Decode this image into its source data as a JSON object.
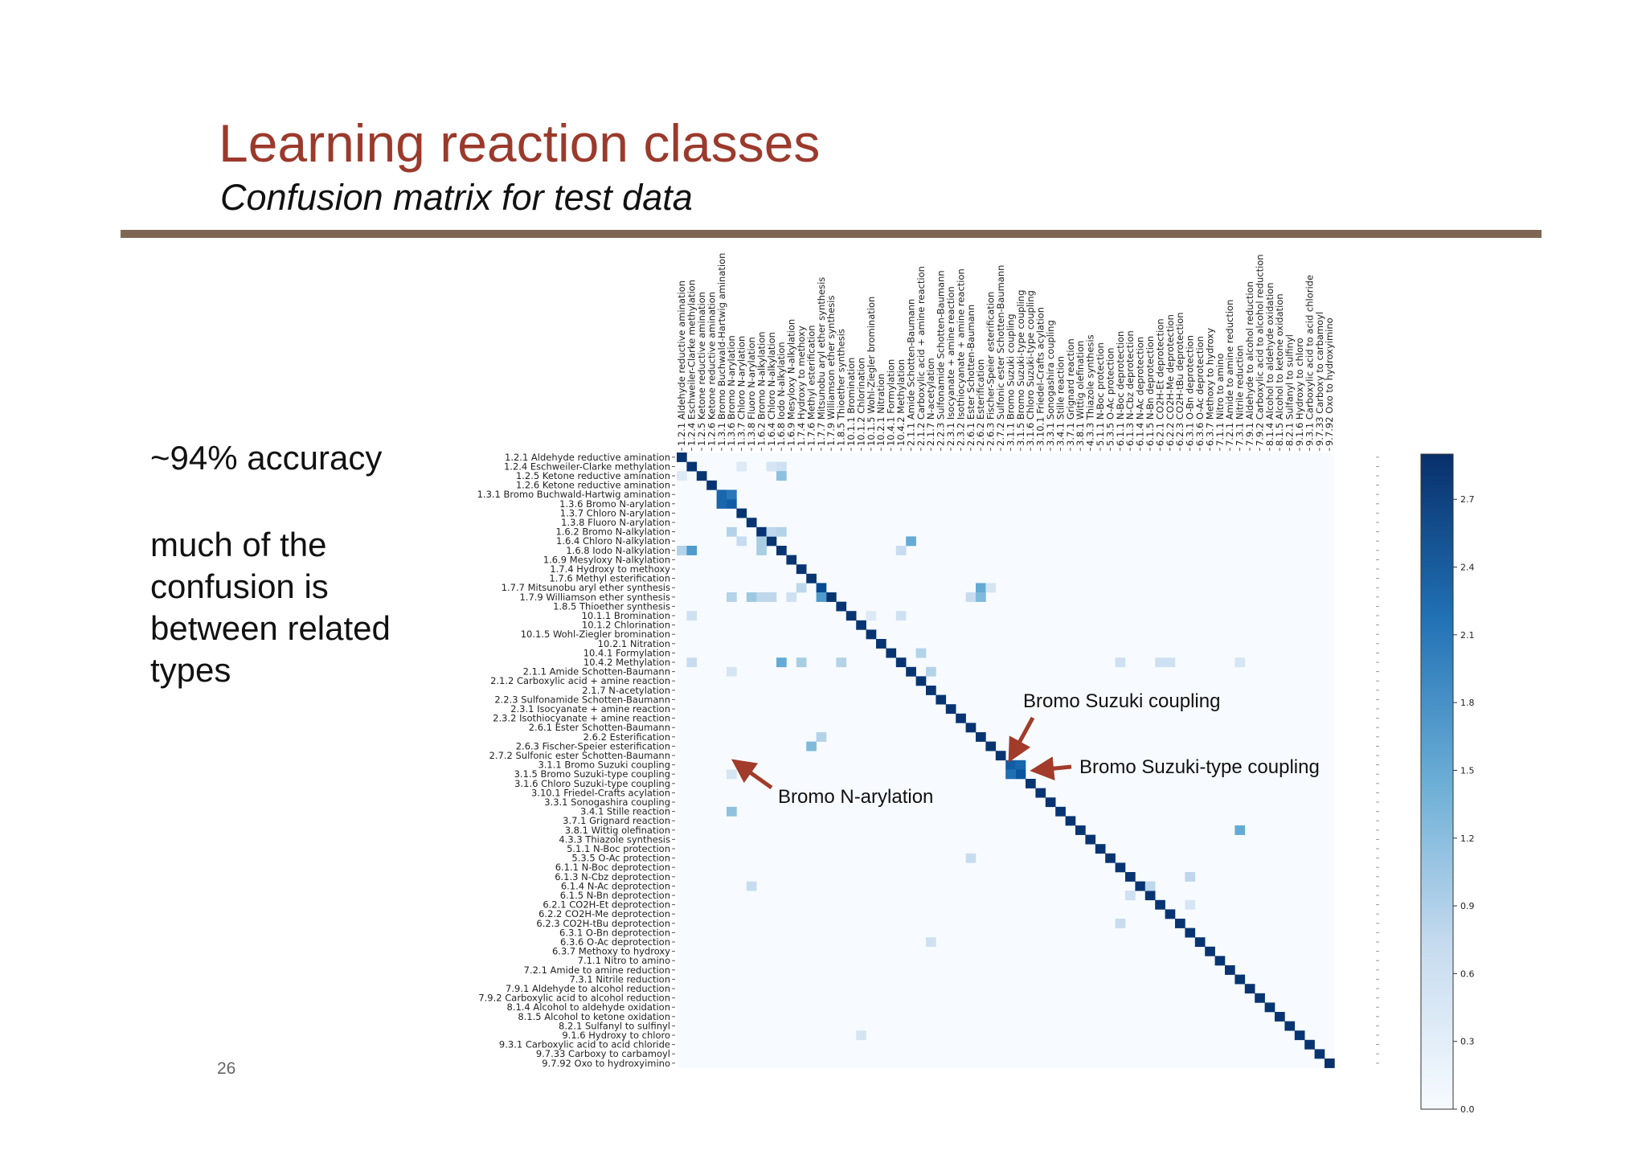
{
  "slide": {
    "title": "Learning reaction classes",
    "subtitle": "Confusion matrix for test data",
    "accuracy_text": "~94% accuracy",
    "note_text": "much of the confusion is between related types",
    "page_number": "26"
  },
  "colors": {
    "title": "#9b3a2c",
    "rule": "#7f6654",
    "arrow": "#a23b2a",
    "cell_min": "#f7fbff",
    "cell_max": "#08306b"
  },
  "chart_data": {
    "type": "heatmap",
    "title": "",
    "xlabel": "",
    "ylabel": "",
    "grid": false,
    "legend": "colorbar-right",
    "colormap": "Blues",
    "labels": [
      "1.2.1 Aldehyde reductive amination",
      "1.2.4 Eschweiler-Clarke methylation",
      "1.2.5 Ketone reductive amination",
      "1.2.6 Ketone reductive amination",
      "1.3.1 Bromo Buchwald-Hartwig amination",
      "1.3.6 Bromo N-arylation",
      "1.3.7 Chloro N-arylation",
      "1.3.8 Fluoro N-arylation",
      "1.6.2 Bromo N-alkylation",
      "1.6.4 Chloro N-alkylation",
      "1.6.8 Iodo N-alkylation",
      "1.6.9 Mesyloxy N-alkylation",
      "1.7.4 Hydroxy to methoxy",
      "1.7.6 Methyl esterification",
      "1.7.7 Mitsunobu aryl ether synthesis",
      "1.7.9 Williamson ether synthesis",
      "1.8.5 Thioether synthesis",
      "10.1.1 Bromination",
      "10.1.2 Chlorination",
      "10.1.5 Wohl-Ziegler bromination",
      "10.2.1 Nitration",
      "10.4.1 Formylation",
      "10.4.2 Methylation",
      "2.1.1 Amide Schotten-Baumann",
      "2.1.2 Carboxylic acid + amine reaction",
      "2.1.7 N-acetylation",
      "2.2.3 Sulfonamide Schotten-Baumann",
      "2.3.1 Isocyanate + amine reaction",
      "2.3.2 Isothiocyanate + amine reaction",
      "2.6.1 Ester Schotten-Baumann",
      "2.6.2 Esterification",
      "2.6.3 Fischer-Speier esterification",
      "2.7.2 Sulfonic ester Schotten-Baumann",
      "3.1.1 Bromo Suzuki coupling",
      "3.1.5 Bromo Suzuki-type coupling",
      "3.1.6 Chloro Suzuki-type coupling",
      "3.10.1 Friedel-Crafts acylation",
      "3.3.1 Sonogashira coupling",
      "3.4.1 Stille reaction",
      "3.7.1 Grignard reaction",
      "3.8.1 Wittig olefination",
      "4.3.3 Thiazole synthesis",
      "5.1.1 N-Boc protection",
      "5.3.5 O-Ac protection",
      "6.1.1 N-Boc deprotection",
      "6.1.3 N-Cbz deprotection",
      "6.1.4 N-Ac deprotection",
      "6.1.5 N-Bn deprotection",
      "6.2.1 CO2H-Et deprotection",
      "6.2.2 CO2H-Me deprotection",
      "6.2.3 CO2H-tBu deprotection",
      "6.3.1 O-Bn deprotection",
      "6.3.6 O-Ac deprotection",
      "6.3.7 Methoxy to hydroxy",
      "7.1.1 Nitro to amino",
      "7.2.1 Amide to amine reduction",
      "7.3.1 Nitrile reduction",
      "7.9.1 Aldehyde to alcohol reduction",
      "7.9.2 Carboxylic acid to alcohol reduction",
      "8.1.4 Alcohol to aldehyde oxidation",
      "8.1.5 Alcohol to ketone oxidation",
      "8.2.1 Sulfanyl to sulfinyl",
      "9.1.6 Hydroxy to chloro",
      "9.3.1 Carboxylic acid to acid chloride",
      "9.7.33 Carboxy to carbamoyl",
      "9.7.92 Oxo to hydroxyimino"
    ],
    "diagonal": [
      2.85,
      2.85,
      2.85,
      2.85,
      2.3,
      2.4,
      2.85,
      2.85,
      2.85,
      2.85,
      2.85,
      2.85,
      2.85,
      2.85,
      2.6,
      2.85,
      2.85,
      2.85,
      2.85,
      2.85,
      2.85,
      2.85,
      2.85,
      2.85,
      2.85,
      2.85,
      2.85,
      2.85,
      2.85,
      2.85,
      2.85,
      2.85,
      2.85,
      2.4,
      2.5,
      2.85,
      2.85,
      2.85,
      2.85,
      2.85,
      2.85,
      2.85,
      2.85,
      2.85,
      2.85,
      2.85,
      2.85,
      2.85,
      2.85,
      2.85,
      2.85,
      2.85,
      2.85,
      2.85,
      2.85,
      2.85,
      2.85,
      2.85,
      2.85,
      2.85,
      2.85,
      2.85,
      2.85,
      2.85,
      2.85,
      2.95
    ],
    "off_diagonal": [
      {
        "row": 1,
        "col": 6,
        "value": 0.4
      },
      {
        "row": 1,
        "col": 9,
        "value": 0.5
      },
      {
        "row": 1,
        "col": 10,
        "value": 0.6
      },
      {
        "row": 2,
        "col": 0,
        "value": 0.4
      },
      {
        "row": 2,
        "col": 10,
        "value": 1.2
      },
      {
        "row": 4,
        "col": 5,
        "value": 2.1
      },
      {
        "row": 5,
        "col": 4,
        "value": 2.3
      },
      {
        "row": 8,
        "col": 5,
        "value": 0.9
      },
      {
        "row": 8,
        "col": 9,
        "value": 0.8
      },
      {
        "row": 8,
        "col": 10,
        "value": 0.9
      },
      {
        "row": 9,
        "col": 6,
        "value": 0.7
      },
      {
        "row": 9,
        "col": 8,
        "value": 1.0
      },
      {
        "row": 9,
        "col": 23,
        "value": 1.5
      },
      {
        "row": 10,
        "col": 0,
        "value": 0.9
      },
      {
        "row": 10,
        "col": 1,
        "value": 1.7
      },
      {
        "row": 10,
        "col": 8,
        "value": 1.0
      },
      {
        "row": 10,
        "col": 22,
        "value": 0.7
      },
      {
        "row": 14,
        "col": 12,
        "value": 0.8
      },
      {
        "row": 14,
        "col": 30,
        "value": 1.5
      },
      {
        "row": 14,
        "col": 31,
        "value": 0.5
      },
      {
        "row": 15,
        "col": 5,
        "value": 0.9
      },
      {
        "row": 15,
        "col": 7,
        "value": 1.1
      },
      {
        "row": 15,
        "col": 8,
        "value": 0.8
      },
      {
        "row": 15,
        "col": 9,
        "value": 0.8
      },
      {
        "row": 15,
        "col": 11,
        "value": 0.6
      },
      {
        "row": 15,
        "col": 14,
        "value": 1.7
      },
      {
        "row": 15,
        "col": 29,
        "value": 0.7
      },
      {
        "row": 15,
        "col": 30,
        "value": 1.3
      },
      {
        "row": 17,
        "col": 1,
        "value": 0.6
      },
      {
        "row": 17,
        "col": 19,
        "value": 0.4
      },
      {
        "row": 17,
        "col": 22,
        "value": 0.6
      },
      {
        "row": 22,
        "col": 1,
        "value": 0.7
      },
      {
        "row": 22,
        "col": 10,
        "value": 1.5
      },
      {
        "row": 22,
        "col": 12,
        "value": 1.0
      },
      {
        "row": 22,
        "col": 16,
        "value": 0.9
      },
      {
        "row": 22,
        "col": 44,
        "value": 0.6
      },
      {
        "row": 22,
        "col": 48,
        "value": 0.6
      },
      {
        "row": 22,
        "col": 49,
        "value": 0.6
      },
      {
        "row": 22,
        "col": 56,
        "value": 0.5
      },
      {
        "row": 23,
        "col": 5,
        "value": 0.5
      },
      {
        "row": 23,
        "col": 25,
        "value": 0.9
      },
      {
        "row": 21,
        "col": 24,
        "value": 0.9
      },
      {
        "row": 30,
        "col": 14,
        "value": 0.9
      },
      {
        "row": 31,
        "col": 13,
        "value": 1.3
      },
      {
        "row": 33,
        "col": 34,
        "value": 2.3
      },
      {
        "row": 34,
        "col": 5,
        "value": 0.5
      },
      {
        "row": 34,
        "col": 33,
        "value": 2.2
      },
      {
        "row": 38,
        "col": 5,
        "value": 1.2
      },
      {
        "row": 40,
        "col": 56,
        "value": 1.5
      },
      {
        "row": 43,
        "col": 29,
        "value": 0.7
      },
      {
        "row": 45,
        "col": 51,
        "value": 0.8
      },
      {
        "row": 46,
        "col": 7,
        "value": 0.7
      },
      {
        "row": 46,
        "col": 47,
        "value": 0.8
      },
      {
        "row": 47,
        "col": 45,
        "value": 0.6
      },
      {
        "row": 48,
        "col": 51,
        "value": 0.5
      },
      {
        "row": 50,
        "col": 44,
        "value": 0.7
      },
      {
        "row": 52,
        "col": 25,
        "value": 0.6
      },
      {
        "row": 62,
        "col": 18,
        "value": 0.5
      }
    ],
    "colorbar": {
      "min": 0.0,
      "max": 2.9,
      "ticks": [
        "0.0",
        "0.3",
        "0.6",
        "0.9",
        "1.2",
        "1.5",
        "1.8",
        "2.1",
        "2.4",
        "2.7"
      ]
    },
    "annotations": [
      {
        "text": "Bromo Suzuki coupling",
        "row": 33,
        "col": 34
      },
      {
        "text": "Bromo Suzuki-type coupling",
        "row": 34,
        "col": 35
      },
      {
        "text": "Bromo N-arylation",
        "row": 34,
        "col": 5
      }
    ]
  }
}
